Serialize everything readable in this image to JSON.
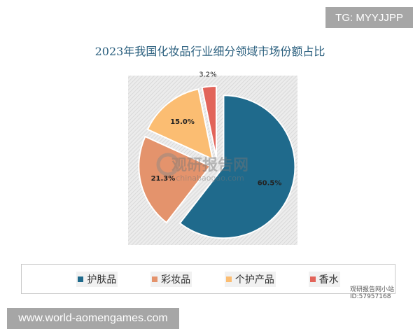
{
  "badge_top": "TG: MYYJJPP",
  "badge_bottom": "www.world-aomengames.com",
  "watermark": {
    "main": "观研报告网",
    "sub": "chinabaogao.com",
    "corner": "观研报告网小站 ID:57957168"
  },
  "chart_data": {
    "type": "pie",
    "title": "2023年我国化妆品行业细分领域市场份额占比",
    "categories": [
      "护肤品",
      "彩妆品",
      "个护产品",
      "香水"
    ],
    "values": [
      60.5,
      21.3,
      15.0,
      3.2
    ],
    "labels": [
      "60.5%",
      "21.3%",
      "15.0%",
      "3.2%"
    ],
    "colors": [
      "#1f6a8c",
      "#e4936c",
      "#fbbd72",
      "#e2645a"
    ],
    "exploded": true,
    "legend_position": "bottom"
  }
}
